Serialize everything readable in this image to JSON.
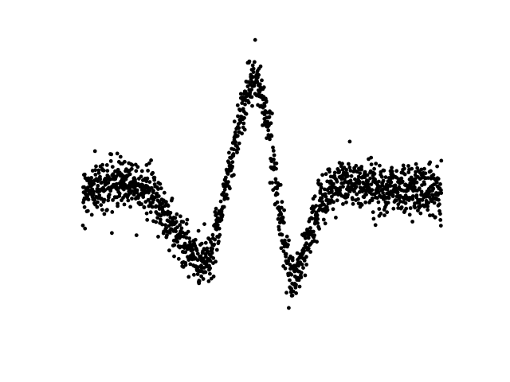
{
  "chart_data": {
    "type": "scatter",
    "title": "",
    "xlabel": "",
    "ylabel": "",
    "axes_visible": false,
    "grid": false,
    "legend": "none",
    "marker_color": "#000000",
    "xlim": [
      0,
      100
    ],
    "ylim": [
      -1.0,
      1.0
    ],
    "series": [
      {
        "point_count": 1600,
        "x": [
          0,
          4,
          8,
          12,
          16,
          20,
          24,
          28,
          32,
          36,
          40,
          44,
          46,
          48,
          50,
          52,
          54,
          56,
          58,
          60,
          62,
          64,
          66,
          68,
          70,
          72,
          76,
          80,
          84,
          88,
          92,
          96,
          100
        ],
        "y": [
          0.0,
          0.03,
          0.06,
          0.08,
          0.05,
          -0.05,
          -0.2,
          -0.38,
          -0.52,
          -0.45,
          0.05,
          0.55,
          0.75,
          0.82,
          0.7,
          0.45,
          0.05,
          -0.4,
          -0.65,
          -0.58,
          -0.42,
          -0.25,
          -0.12,
          -0.02,
          0.04,
          0.06,
          0.05,
          0.04,
          0.03,
          0.02,
          0.02,
          0.01,
          0.0
        ],
        "noise_sd": 0.09
      }
    ]
  }
}
